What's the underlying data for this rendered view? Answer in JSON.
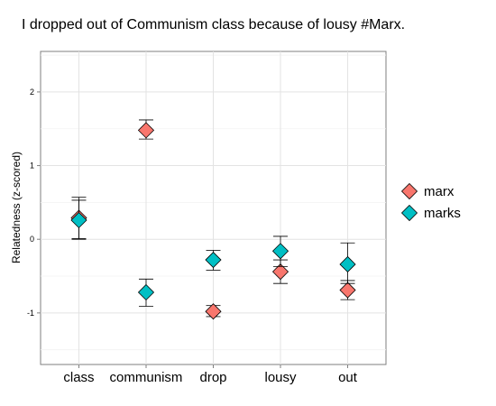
{
  "chart_data": {
    "type": "scatter",
    "title": "I dropped out of Communism class because of lousy #Marx.",
    "xlabel": "",
    "ylabel": "Relatedness (z-scored)",
    "categories": [
      "class",
      "communism",
      "drop",
      "lousy",
      "out"
    ],
    "ylim": [
      -1.7,
      2.55
    ],
    "yticks": [
      -1,
      0,
      1,
      2
    ],
    "grid": true,
    "legend_position": "right",
    "series": [
      {
        "name": "marx",
        "color": "#F8766D",
        "values": [
          0.29,
          1.48,
          -0.98,
          -0.44,
          -0.69
        ],
        "lower": [
          0.01,
          1.36,
          -1.05,
          -0.6,
          -0.82
        ],
        "upper": [
          0.57,
          1.62,
          -0.9,
          -0.28,
          -0.56
        ]
      },
      {
        "name": "marks",
        "color": "#00BFC4",
        "values": [
          0.26,
          -0.72,
          -0.28,
          -0.16,
          -0.34
        ],
        "lower": [
          0.0,
          -0.91,
          -0.42,
          -0.37,
          -0.6
        ],
        "upper": [
          0.53,
          -0.54,
          -0.15,
          0.04,
          -0.05
        ]
      }
    ]
  }
}
